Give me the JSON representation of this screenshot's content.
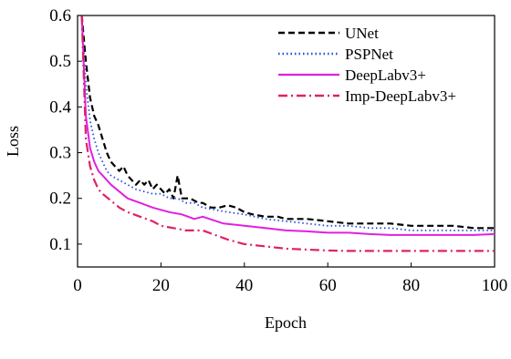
{
  "chart_data": {
    "type": "line",
    "xlabel": "Epoch",
    "ylabel": "Loss",
    "xlim": [
      0,
      100
    ],
    "ylim": [
      0.05,
      0.6
    ],
    "xticks": [
      "0",
      "20",
      "40",
      "60",
      "80",
      "100"
    ],
    "yticks": [
      "0.1",
      "0.2",
      "0.3",
      "0.4",
      "0.5",
      "0.6"
    ],
    "legend_position": "top-right",
    "grid": false,
    "series": [
      {
        "name": "UNet",
        "color": "#000000",
        "style": "dashed",
        "x": [
          1,
          2,
          3,
          4,
          5,
          6,
          7,
          8,
          9,
          10,
          11,
          12,
          13,
          14,
          15,
          16,
          17,
          18,
          19,
          20,
          21,
          22,
          23,
          24,
          25,
          26,
          27,
          28,
          29,
          30,
          32,
          34,
          36,
          38,
          40,
          42,
          45,
          48,
          50,
          55,
          60,
          65,
          70,
          75,
          80,
          85,
          90,
          95,
          100
        ],
        "values": [
          0.6,
          0.5,
          0.42,
          0.38,
          0.36,
          0.33,
          0.3,
          0.28,
          0.27,
          0.26,
          0.27,
          0.25,
          0.24,
          0.23,
          0.24,
          0.23,
          0.24,
          0.22,
          0.23,
          0.22,
          0.21,
          0.22,
          0.2,
          0.25,
          0.2,
          0.2,
          0.2,
          0.195,
          0.19,
          0.19,
          0.18,
          0.18,
          0.185,
          0.18,
          0.17,
          0.165,
          0.16,
          0.16,
          0.155,
          0.155,
          0.15,
          0.145,
          0.145,
          0.145,
          0.14,
          0.14,
          0.14,
          0.135,
          0.135
        ]
      },
      {
        "name": "PSPNet",
        "color": "#1f4fe0",
        "style": "dotted",
        "x": [
          1,
          2,
          3,
          4,
          5,
          6,
          7,
          8,
          10,
          12,
          14,
          16,
          18,
          20,
          22,
          24,
          26,
          28,
          30,
          33,
          36,
          40,
          45,
          50,
          55,
          60,
          65,
          70,
          75,
          80,
          85,
          90,
          95,
          100
        ],
        "values": [
          0.6,
          0.45,
          0.37,
          0.33,
          0.3,
          0.28,
          0.26,
          0.25,
          0.24,
          0.23,
          0.22,
          0.215,
          0.21,
          0.21,
          0.2,
          0.2,
          0.19,
          0.19,
          0.18,
          0.175,
          0.17,
          0.165,
          0.155,
          0.15,
          0.145,
          0.14,
          0.14,
          0.135,
          0.135,
          0.13,
          0.13,
          0.13,
          0.13,
          0.13
        ]
      },
      {
        "name": "DeepLabv3+",
        "color": "#e020e0",
        "style": "solid",
        "x": [
          1,
          2,
          3,
          4,
          5,
          6,
          8,
          10,
          12,
          15,
          18,
          20,
          22,
          25,
          28,
          30,
          35,
          40,
          45,
          50,
          55,
          60,
          65,
          70,
          75,
          80,
          85,
          90,
          95,
          100
        ],
        "values": [
          0.6,
          0.38,
          0.31,
          0.28,
          0.26,
          0.25,
          0.23,
          0.215,
          0.2,
          0.19,
          0.18,
          0.175,
          0.17,
          0.165,
          0.155,
          0.16,
          0.145,
          0.14,
          0.135,
          0.13,
          0.128,
          0.125,
          0.125,
          0.122,
          0.12,
          0.12,
          0.12,
          0.12,
          0.12,
          0.122
        ]
      },
      {
        "name": "Imp-DeepLabv3+",
        "color": "#e0206a",
        "style": "dashdot",
        "x": [
          1,
          2,
          3,
          4,
          5,
          6,
          8,
          10,
          12,
          15,
          18,
          20,
          23,
          26,
          30,
          33,
          36,
          40,
          45,
          50,
          55,
          60,
          65,
          70,
          75,
          80,
          85,
          90,
          95,
          100
        ],
        "values": [
          0.6,
          0.33,
          0.27,
          0.24,
          0.22,
          0.21,
          0.195,
          0.18,
          0.17,
          0.16,
          0.15,
          0.14,
          0.135,
          0.13,
          0.13,
          0.12,
          0.11,
          0.1,
          0.095,
          0.09,
          0.088,
          0.086,
          0.085,
          0.085,
          0.085,
          0.085,
          0.085,
          0.085,
          0.085,
          0.085
        ]
      }
    ]
  }
}
